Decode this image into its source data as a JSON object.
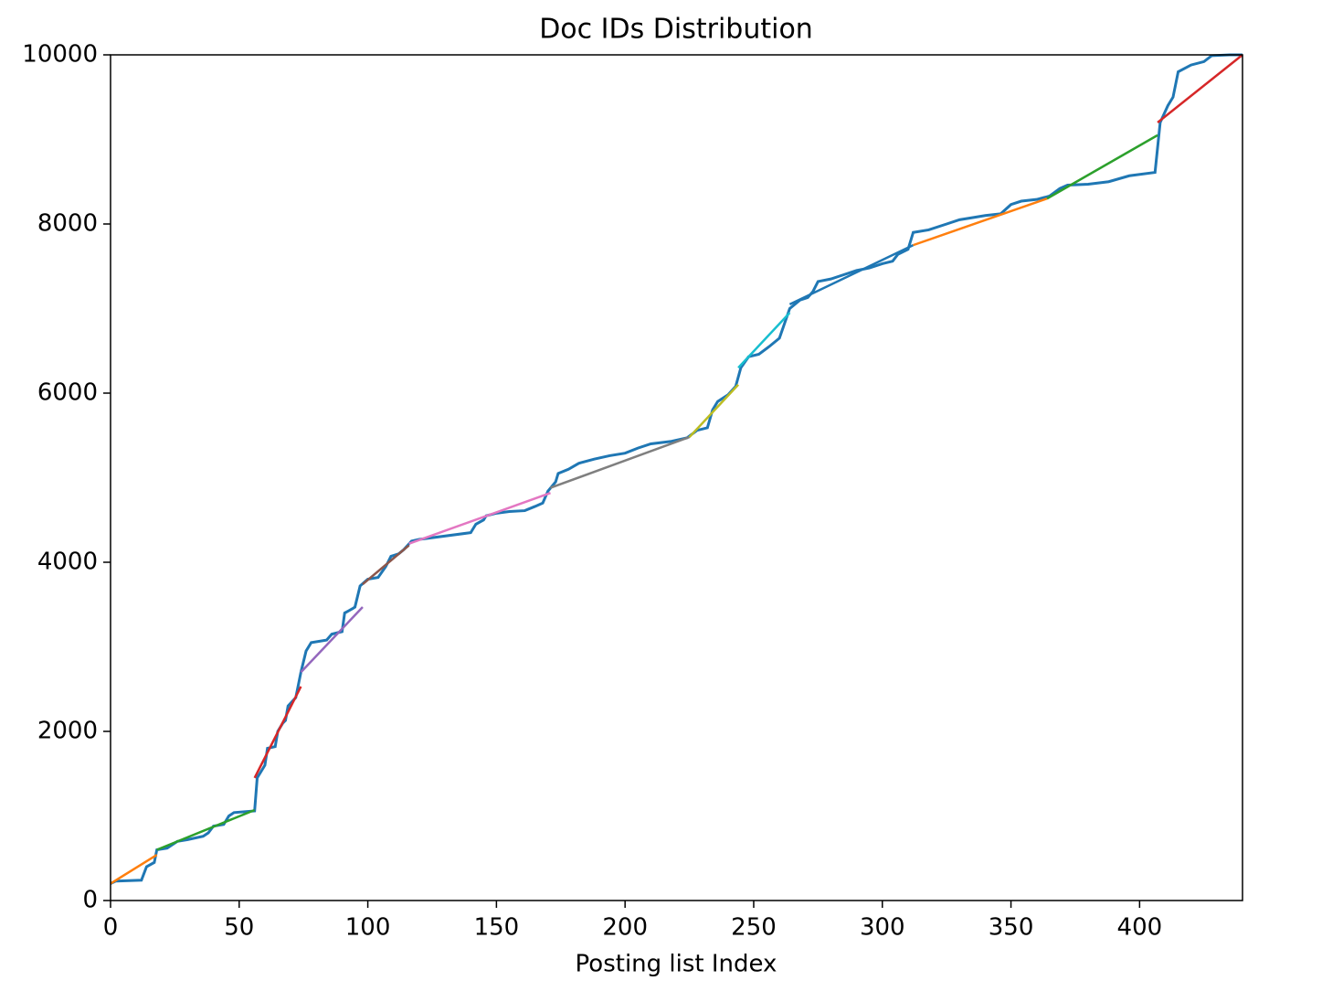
{
  "chart_data": {
    "type": "line",
    "title": "Doc IDs Distribution",
    "x_label": "Posting list Index",
    "xlim": [
      0,
      440
    ],
    "ylim": [
      0,
      10000
    ],
    "xticks": [
      0,
      50,
      100,
      150,
      200,
      250,
      300,
      350,
      400
    ],
    "yticks": [
      0,
      2000,
      4000,
      6000,
      8000,
      10000
    ],
    "grid": false,
    "series": [
      {
        "color": "#1f77b4",
        "x": [
          0,
          2,
          12,
          14,
          17,
          18,
          22,
          26,
          30,
          36,
          38,
          40,
          44,
          46,
          48,
          56,
          57,
          60,
          61,
          64,
          65,
          67,
          68,
          69,
          72,
          73,
          74,
          76,
          78,
          84,
          86,
          90,
          91,
          94,
          95,
          97,
          100,
          104,
          107,
          109,
          112,
          114,
          117,
          120,
          140,
          142,
          145,
          146,
          150,
          155,
          161,
          165,
          168,
          170,
          173,
          174,
          178,
          182,
          188,
          194,
          200,
          205,
          210,
          218,
          224,
          228,
          232,
          234,
          236,
          240,
          243,
          245,
          248,
          252,
          256,
          260,
          264,
          268,
          271,
          273,
          275,
          280,
          285,
          290,
          295,
          300,
          304,
          306,
          310,
          312,
          318,
          325,
          330,
          336,
          340,
          346,
          350,
          354,
          360,
          365,
          369,
          372,
          380,
          388,
          396,
          406,
          408,
          411,
          413,
          415,
          420,
          425,
          428,
          435,
          440
        ],
        "values": [
          200,
          230,
          240,
          400,
          450,
          600,
          620,
          700,
          720,
          760,
          800,
          880,
          900,
          1000,
          1040,
          1060,
          1450,
          1600,
          1800,
          1820,
          2000,
          2100,
          2130,
          2300,
          2400,
          2550,
          2700,
          2950,
          3050,
          3080,
          3150,
          3180,
          3400,
          3450,
          3470,
          3720,
          3800,
          3820,
          3950,
          4070,
          4100,
          4150,
          4250,
          4270,
          4350,
          4450,
          4500,
          4550,
          4580,
          4600,
          4610,
          4660,
          4700,
          4840,
          4950,
          5050,
          5100,
          5170,
          5220,
          5260,
          5290,
          5350,
          5400,
          5430,
          5470,
          5560,
          5590,
          5800,
          5900,
          5980,
          6080,
          6300,
          6430,
          6460,
          6550,
          6650,
          7000,
          7100,
          7130,
          7200,
          7320,
          7350,
          7400,
          7450,
          7480,
          7530,
          7560,
          7640,
          7700,
          7900,
          7930,
          8000,
          8050,
          8080,
          8100,
          8120,
          8230,
          8270,
          8290,
          8330,
          8420,
          8460,
          8470,
          8500,
          8570,
          8610,
          9200,
          9400,
          9500,
          9800,
          9880,
          9920,
          9990,
          10000,
          10000
        ]
      },
      {
        "color": "#ff7f0e",
        "x": [
          0,
          18
        ],
        "values": [
          200,
          540
        ]
      },
      {
        "color": "#2ca02c",
        "x": [
          18,
          56
        ],
        "values": [
          600,
          1070
        ]
      },
      {
        "color": "#d62728",
        "x": [
          56,
          74
        ],
        "values": [
          1450,
          2530
        ]
      },
      {
        "color": "#9467bd",
        "x": [
          74,
          98
        ],
        "values": [
          2700,
          3470
        ]
      },
      {
        "color": "#8c564b",
        "x": [
          98,
          116
        ],
        "values": [
          3740,
          4200
        ]
      },
      {
        "color": "#e377c2",
        "x": [
          116,
          171
        ],
        "values": [
          4220,
          4820
        ]
      },
      {
        "color": "#7f7f7f",
        "x": [
          171,
          225
        ],
        "values": [
          4880,
          5480
        ]
      },
      {
        "color": "#bcbd22",
        "x": [
          225,
          244
        ],
        "values": [
          5480,
          6100
        ]
      },
      {
        "color": "#17becf",
        "x": [
          244,
          264
        ],
        "values": [
          6300,
          6950
        ]
      },
      {
        "color": "#1f77b4",
        "x": [
          264,
          312
        ],
        "values": [
          7050,
          7750
        ]
      },
      {
        "color": "#ff7f0e",
        "x": [
          312,
          364
        ],
        "values": [
          7750,
          8300
        ]
      },
      {
        "color": "#2ca02c",
        "x": [
          364,
          407
        ],
        "values": [
          8300,
          9050
        ]
      },
      {
        "color": "#d62728",
        "x": [
          407,
          440
        ],
        "values": [
          9200,
          10000
        ]
      }
    ]
  }
}
